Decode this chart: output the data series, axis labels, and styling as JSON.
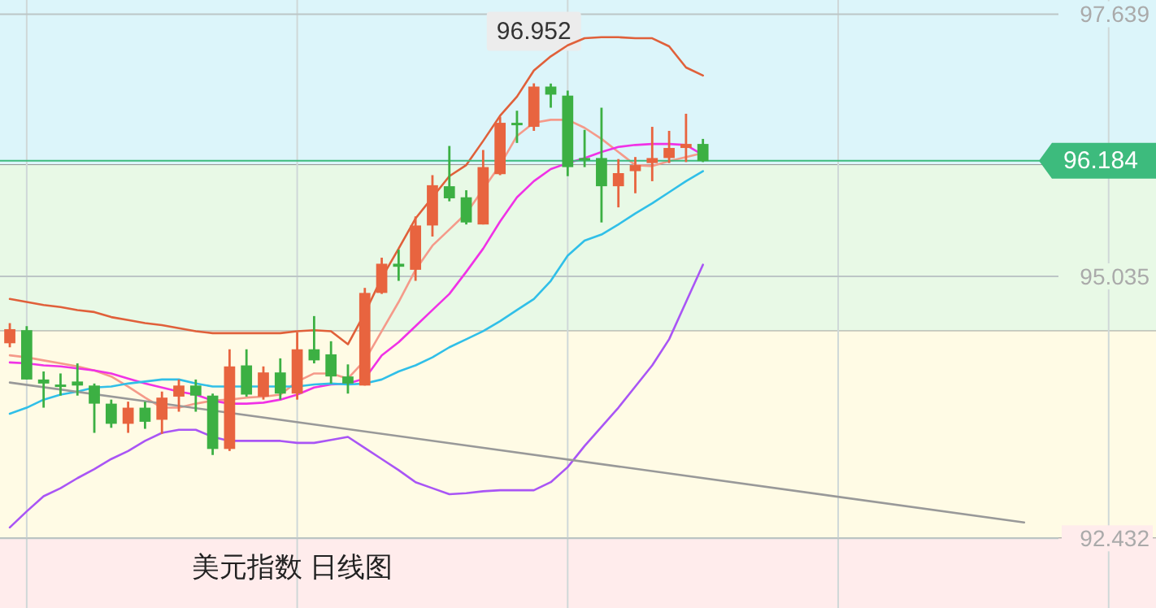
{
  "chart_data": {
    "type": "candlestick",
    "title": "美元指数 日线图",
    "categories": [
      null,
      null,
      null,
      null,
      null,
      null,
      null,
      null,
      null,
      null,
      null,
      null,
      null,
      null,
      null,
      null,
      null,
      null,
      null,
      null,
      null,
      null,
      null,
      null,
      null,
      null,
      null,
      null,
      null,
      null,
      null,
      null,
      null,
      null,
      null,
      null,
      null,
      null,
      null,
      null,
      null,
      null,
      null,
      null,
      null,
      null,
      null,
      null,
      null,
      null,
      null,
      null,
      null,
      null,
      null,
      null,
      null,
      null,
      null,
      null,
      null,
      null,
      null,
      null,
      null,
      null,
      null,
      null
    ],
    "ohlc": [
      [
        94.37,
        94.57,
        94.33,
        94.51
      ],
      [
        94.5,
        94.54,
        94.01,
        94.01
      ],
      [
        94.01,
        94.09,
        93.73,
        93.97
      ],
      [
        93.96,
        94.07,
        93.85,
        93.94
      ],
      [
        93.99,
        94.17,
        93.85,
        93.95
      ],
      [
        93.95,
        93.97,
        93.48,
        93.77
      ],
      [
        93.77,
        93.81,
        93.53,
        93.57
      ],
      [
        93.57,
        93.79,
        93.48,
        93.73
      ],
      [
        93.73,
        93.79,
        93.52,
        93.59
      ],
      [
        93.61,
        93.89,
        93.47,
        93.83
      ],
      [
        93.84,
        94.01,
        93.69,
        93.95
      ],
      [
        93.95,
        94.01,
        93.69,
        93.85
      ],
      [
        93.85,
        93.87,
        93.26,
        93.32
      ],
      [
        93.32,
        94.31,
        93.3,
        94.14
      ],
      [
        94.15,
        94.31,
        93.84,
        93.86
      ],
      [
        93.84,
        94.14,
        93.81,
        94.08
      ],
      [
        94.08,
        94.22,
        93.81,
        93.87
      ],
      [
        93.87,
        94.48,
        93.81,
        94.31
      ],
      [
        94.31,
        94.64,
        94.17,
        94.2
      ],
      [
        94.26,
        94.39,
        93.97,
        94.04
      ],
      [
        94.04,
        94.16,
        93.87,
        93.97
      ],
      [
        93.95,
        94.92,
        93.95,
        94.87
      ],
      [
        94.87,
        95.22,
        94.86,
        95.16
      ],
      [
        95.16,
        95.3,
        94.99,
        95.13
      ],
      [
        95.1,
        95.63,
        94.99,
        95.54
      ],
      [
        95.54,
        96.04,
        95.43,
        95.94
      ],
      [
        95.93,
        96.33,
        95.78,
        95.81
      ],
      [
        95.82,
        95.89,
        95.55,
        95.57
      ],
      [
        95.55,
        96.29,
        95.55,
        96.12
      ],
      [
        96.05,
        96.62,
        96.04,
        96.56
      ],
      [
        96.56,
        96.68,
        96.36,
        96.54
      ],
      [
        96.52,
        96.952,
        96.48,
        96.92
      ],
      [
        96.92,
        96.95,
        96.71,
        96.84
      ],
      [
        96.83,
        96.88,
        96.03,
        96.12
      ],
      [
        96.21,
        96.49,
        96.12,
        96.2
      ],
      [
        96.21,
        96.71,
        95.57,
        95.93
      ],
      [
        95.93,
        96.2,
        95.72,
        96.06
      ],
      [
        96.08,
        96.22,
        95.86,
        96.14
      ],
      [
        96.16,
        96.52,
        95.98,
        96.21
      ],
      [
        96.21,
        96.48,
        96.16,
        96.31
      ],
      [
        96.31,
        96.65,
        96.17,
        96.35
      ],
      [
        96.35,
        96.4,
        96.17,
        96.18
      ],
      null,
      null,
      null,
      null,
      null,
      null,
      null,
      null,
      null,
      null,
      null,
      null,
      null,
      null,
      null,
      null,
      null,
      null,
      null,
      null,
      null,
      null,
      null,
      null,
      null,
      null
    ],
    "colors": [
      "#e8643f",
      "#3cb043",
      "#3cb043",
      "#3cb043",
      "#3cb043",
      "#3cb043",
      "#3cb043",
      "#e8643f",
      "#3cb043",
      "#e8643f",
      "#e8643f",
      "#3cb043",
      "#3cb043",
      "#e8643f",
      "#3cb043",
      "#e8643f",
      "#3cb043",
      "#e8643f",
      "#3cb043",
      "#3cb043",
      "#3cb043",
      "#e8643f",
      "#e8643f",
      "#3cb043",
      "#e8643f",
      "#e8643f",
      "#3cb043",
      "#3cb043",
      "#e8643f",
      "#e8643f",
      "#3cb043",
      "#e8643f",
      "#3cb043",
      "#3cb043",
      "#3cb043",
      "#3cb043",
      "#e8643f",
      "#e8643f",
      "#e8643f",
      "#e8643f",
      "#e8643f",
      "#3cb043",
      null,
      null,
      null,
      null,
      null,
      null,
      null,
      null,
      null,
      null,
      null,
      null,
      null,
      null,
      null,
      null,
      null,
      null,
      null,
      null,
      null,
      null,
      null,
      null,
      null,
      null
    ],
    "series": [
      {
        "type": "line",
        "color": "#e0603a",
        "values": [
          94.81,
          94.78,
          94.75,
          94.73,
          94.7,
          94.68,
          94.63,
          94.6,
          94.57,
          94.55,
          94.52,
          94.49,
          94.47,
          94.47,
          94.47,
          94.47,
          94.47,
          94.49,
          94.5,
          94.49,
          94.36,
          94.67,
          95.02,
          95.31,
          95.61,
          95.82,
          96.03,
          96.14,
          96.38,
          96.63,
          96.82,
          97.08,
          97.22,
          97.33,
          97.4,
          97.41,
          97.41,
          97.4,
          97.4,
          97.32,
          97.11,
          97.03,
          null,
          null,
          null,
          null,
          null,
          null,
          null,
          null,
          null,
          null,
          null,
          null,
          null,
          null,
          null,
          null,
          null,
          null,
          null,
          null,
          null,
          null,
          null,
          null,
          null,
          null
        ]
      },
      {
        "type": "line",
        "color": "#f59a8a",
        "values": [
          94.25,
          94.23,
          94.2,
          94.17,
          94.14,
          94.1,
          94.04,
          93.94,
          93.83,
          93.73,
          93.73,
          93.77,
          93.8,
          93.81,
          93.83,
          93.84,
          93.86,
          93.99,
          94.07,
          94.07,
          94.02,
          94.2,
          94.49,
          94.78,
          95.1,
          95.34,
          95.5,
          95.66,
          95.9,
          96.14,
          96.43,
          96.56,
          96.59,
          96.59,
          96.51,
          96.4,
          96.27,
          96.14,
          96.13,
          96.18,
          96.22,
          96.26,
          null,
          null,
          null,
          null,
          null,
          null,
          null,
          null,
          null,
          null,
          null,
          null,
          null,
          null,
          null,
          null,
          null,
          null,
          null,
          null,
          null,
          null,
          null,
          null,
          null,
          null
        ]
      },
      {
        "type": "line",
        "color": "#f032e6",
        "values": [
          94.18,
          94.17,
          94.15,
          94.14,
          94.12,
          94.1,
          94.07,
          94.02,
          93.97,
          93.93,
          93.89,
          93.86,
          93.8,
          93.77,
          93.77,
          93.78,
          93.81,
          93.86,
          93.93,
          93.96,
          93.97,
          94.02,
          94.25,
          94.38,
          94.54,
          94.7,
          94.86,
          95.08,
          95.31,
          95.58,
          95.82,
          95.98,
          96.1,
          96.16,
          96.21,
          96.27,
          96.32,
          96.34,
          96.35,
          96.35,
          96.34,
          96.24,
          null,
          null,
          null,
          null,
          null,
          null,
          null,
          null,
          null,
          null,
          null,
          null,
          null,
          null,
          null,
          null,
          null,
          null,
          null,
          null,
          null,
          null,
          null,
          null,
          null,
          null
        ]
      },
      {
        "type": "line",
        "color": "#30bfe8",
        "values": [
          93.67,
          93.73,
          93.81,
          93.86,
          93.89,
          93.93,
          93.94,
          93.97,
          93.99,
          94.01,
          94.01,
          93.97,
          93.94,
          93.94,
          93.94,
          93.94,
          93.94,
          93.94,
          93.96,
          93.97,
          93.96,
          93.97,
          94.01,
          94.09,
          94.15,
          94.23,
          94.33,
          94.41,
          94.49,
          94.59,
          94.7,
          94.81,
          94.99,
          95.24,
          95.39,
          95.45,
          95.55,
          95.66,
          95.76,
          95.87,
          95.98,
          96.08,
          null,
          null,
          null,
          null,
          null,
          null,
          null,
          null,
          null,
          null,
          null,
          null,
          null,
          null,
          null,
          null,
          null,
          null,
          null,
          null,
          null,
          null,
          null,
          null,
          null,
          null
        ]
      },
      {
        "type": "line",
        "color": "#a955f5",
        "values": [
          92.54,
          92.7,
          92.85,
          92.93,
          93.03,
          93.12,
          93.22,
          93.3,
          93.4,
          93.48,
          93.51,
          93.51,
          93.44,
          93.4,
          93.4,
          93.4,
          93.4,
          93.38,
          93.38,
          93.41,
          93.44,
          93.33,
          93.22,
          93.11,
          92.99,
          92.93,
          92.87,
          92.88,
          92.9,
          92.91,
          92.91,
          92.91,
          92.99,
          93.14,
          93.35,
          93.54,
          93.73,
          93.94,
          94.15,
          94.41,
          94.78,
          95.15,
          null,
          null,
          null,
          null,
          null,
          null,
          null,
          null,
          null,
          null,
          null,
          null,
          null,
          null,
          null,
          null,
          null,
          null,
          null,
          null,
          null,
          null,
          null,
          null,
          null,
          null
        ]
      },
      {
        "type": "line",
        "color": "#999999",
        "values": [
          93.98,
          null,
          null,
          null,
          null,
          null,
          null,
          null,
          null,
          null,
          null,
          null,
          null,
          null,
          null,
          null,
          null,
          null,
          null,
          null,
          null,
          null,
          null,
          null,
          null,
          null,
          null,
          null,
          null,
          null,
          null,
          null,
          null,
          null,
          null,
          null,
          null,
          null,
          null,
          null,
          null,
          null,
          null,
          null,
          null,
          null,
          null,
          null,
          null,
          null,
          null,
          null,
          null,
          null,
          null,
          null,
          null,
          null,
          null,
          null,
          92.59,
          null,
          null,
          null,
          null,
          null,
          null,
          null
        ]
      }
    ],
    "ylim": [
      91.74,
      97.78
    ],
    "yticks": [
      97.639,
      95.035,
      92.432
    ],
    "tick_labels": "y",
    "grid": true,
    "ref_lines": [
      {
        "axis": "y",
        "value": 96.184,
        "label": "96.184",
        "color": "#3dbb7d"
      }
    ],
    "bands": [
      {
        "axis": "y",
        "from": 96.14,
        "to": 97.78,
        "color": "#dcf5fa"
      },
      {
        "axis": "y",
        "from": 94.49,
        "to": 96.14,
        "color": "#e8f9e6"
      },
      {
        "axis": "y",
        "from": 92.432,
        "to": 94.49,
        "color": "#fffbe5"
      },
      {
        "axis": "y",
        "from": 91.74,
        "to": 92.432,
        "color": "#ffecec"
      }
    ],
    "annotations": [
      {
        "text": "96.952",
        "y": 96.952
      }
    ]
  }
}
